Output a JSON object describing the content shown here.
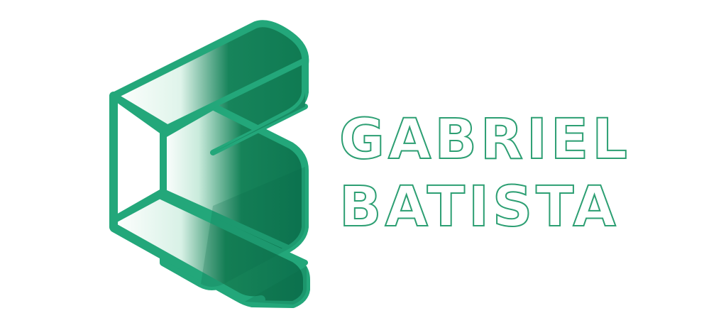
{
  "brand": {
    "first_name": "GABRIEL",
    "last_name": "BATISTA"
  },
  "colors": {
    "accent": "#23A77A",
    "accent_dark": "#0F7A52",
    "accent_deep": "#0A6A47",
    "white": "#FFFFFF"
  },
  "icons": {
    "emblem": "isometric-g-logo-icon"
  }
}
